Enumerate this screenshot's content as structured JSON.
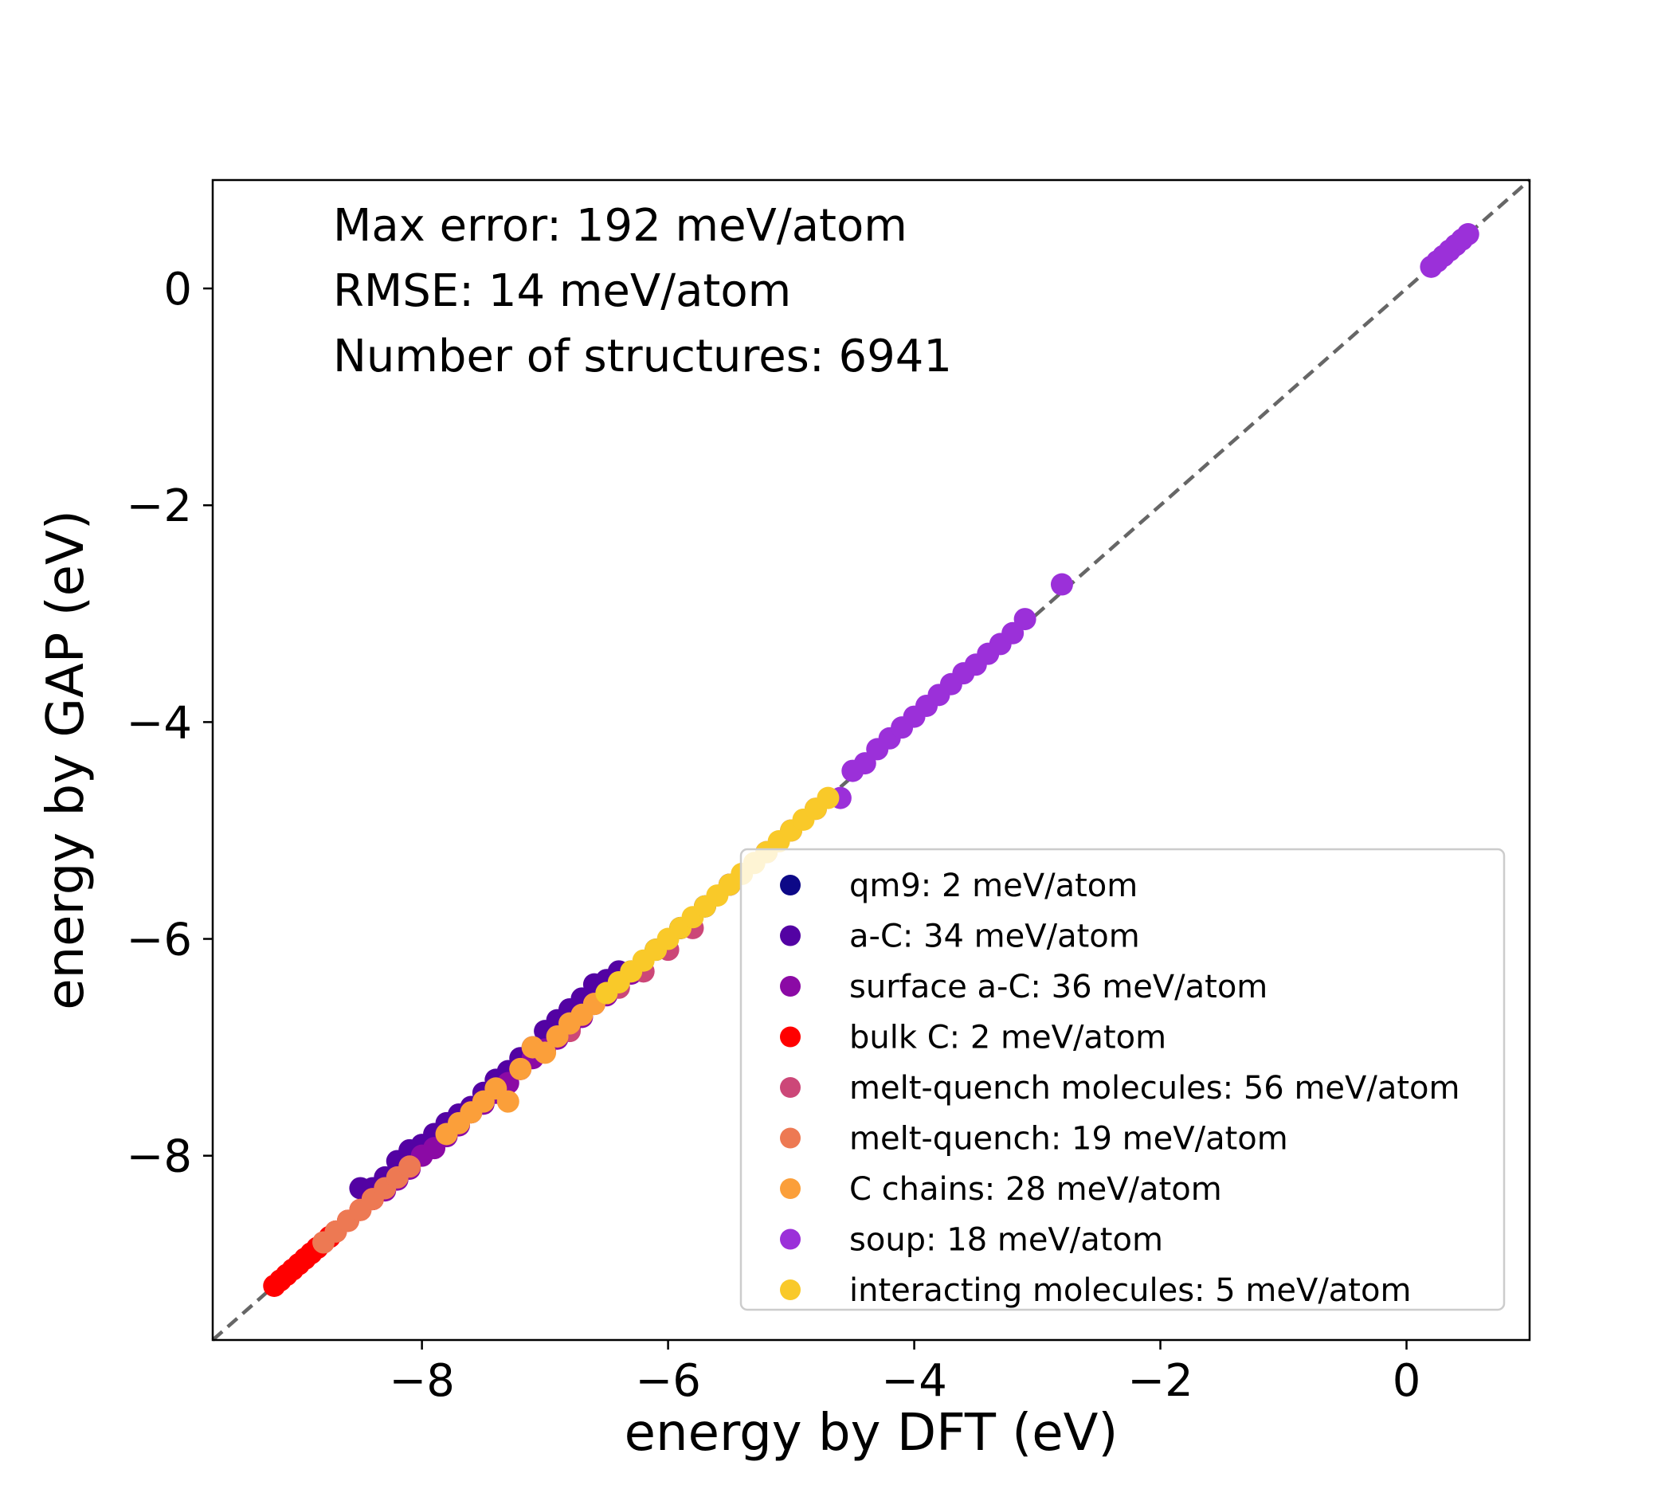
{
  "chart_data": {
    "type": "scatter",
    "title": "",
    "xlabel": "energy by DFT (eV)",
    "ylabel": "energy by GAP (eV)",
    "xlim": [
      -9.7,
      1.0
    ],
    "ylim": [
      -9.7,
      1.0
    ],
    "xticks": [
      -8,
      -6,
      -4,
      -2,
      0
    ],
    "yticks": [
      -8,
      -6,
      -4,
      -2,
      0
    ],
    "xtick_labels": [
      "−8",
      "−6",
      "−4",
      "−2",
      "0"
    ],
    "ytick_labels": [
      "−8",
      "−6",
      "−4",
      "−2",
      "0"
    ],
    "grid": false,
    "reference_line": {
      "from": [
        -9.7,
        -9.7
      ],
      "to": [
        1.0,
        1.0
      ],
      "style": "dashed",
      "color": "#666666"
    },
    "annotations": [
      "Max error: 192 meV/atom",
      "RMSE: 14 meV/atom",
      "Number of structures: 6941"
    ],
    "legend_position": "lower-right",
    "series": [
      {
        "name": "qm9: 2 meV/atom",
        "color": "#0d0887",
        "x": [
          -6.3,
          -6.1,
          -5.9,
          -5.7,
          -5.5
        ],
        "y": [
          -6.3,
          -6.1,
          -5.9,
          -5.7,
          -5.5
        ]
      },
      {
        "name": "a-C: 34 meV/atom",
        "color": "#5302a3",
        "x": [
          -8.5,
          -8.4,
          -8.3,
          -8.2,
          -8.1,
          -8.0,
          -7.9,
          -7.8,
          -7.7,
          -7.6,
          -7.5,
          -7.4,
          -7.3,
          -7.2,
          -7.1,
          -7.0,
          -6.9,
          -6.8,
          -6.7,
          -6.6,
          -6.5,
          -6.4
        ],
        "y": [
          -8.3,
          -8.3,
          -8.2,
          -8.05,
          -7.95,
          -7.9,
          -7.8,
          -7.7,
          -7.62,
          -7.55,
          -7.42,
          -7.3,
          -7.22,
          -7.1,
          -7.0,
          -6.85,
          -6.75,
          -6.65,
          -6.55,
          -6.42,
          -6.38,
          -6.3
        ]
      },
      {
        "name": "surface a-C: 36 meV/atom",
        "color": "#8b0aa5",
        "x": [
          -8.4,
          -8.3,
          -8.2,
          -8.1,
          -8.0,
          -7.9,
          -7.8,
          -7.7,
          -7.6,
          -7.5,
          -7.4,
          -7.3,
          -7.2,
          -7.1,
          -7.0,
          -6.9,
          -6.8,
          -6.7,
          -6.6,
          -6.5,
          -6.4,
          -6.3
        ],
        "y": [
          -8.4,
          -8.32,
          -8.22,
          -8.12,
          -8.0,
          -7.93,
          -7.82,
          -7.72,
          -7.6,
          -7.52,
          -7.42,
          -7.33,
          -7.2,
          -7.1,
          -7.02,
          -6.92,
          -6.82,
          -6.72,
          -6.6,
          -6.52,
          -6.4,
          -6.32
        ]
      },
      {
        "name": "bulk C: 2 meV/atom",
        "color": "#ff0000",
        "x": [
          -9.2,
          -9.15,
          -9.1,
          -9.05,
          -9.0,
          -8.95,
          -8.9,
          -8.85,
          -8.8,
          -8.75,
          -8.7,
          -8.6,
          -8.5,
          -8.4
        ],
        "y": [
          -9.2,
          -9.15,
          -9.1,
          -9.05,
          -9.0,
          -8.95,
          -8.9,
          -8.85,
          -8.8,
          -8.75,
          -8.7,
          -8.6,
          -8.5,
          -8.4
        ]
      },
      {
        "name": "melt-quench molecules: 56 meV/atom",
        "color": "#cc4778",
        "x": [
          -6.8,
          -6.6,
          -6.4,
          -6.2,
          -6.0,
          -5.8
        ],
        "y": [
          -6.85,
          -6.6,
          -6.45,
          -6.3,
          -6.1,
          -5.9
        ]
      },
      {
        "name": "melt-quench: 19 meV/atom",
        "color": "#ed7953",
        "x": [
          -8.8,
          -8.7,
          -8.6,
          -8.5,
          -8.4,
          -8.3,
          -8.2,
          -8.1
        ],
        "y": [
          -8.8,
          -8.7,
          -8.6,
          -8.5,
          -8.4,
          -8.3,
          -8.2,
          -8.1
        ]
      },
      {
        "name": "C chains: 28 meV/atom",
        "color": "#fb9f3a",
        "x": [
          -7.8,
          -7.7,
          -7.6,
          -7.5,
          -7.4,
          -7.3,
          -7.2,
          -7.1,
          -7.0,
          -6.9,
          -6.8,
          -6.7,
          -6.6,
          -6.5
        ],
        "y": [
          -7.8,
          -7.7,
          -7.6,
          -7.5,
          -7.38,
          -7.5,
          -7.2,
          -7.0,
          -7.05,
          -6.9,
          -6.78,
          -6.7,
          -6.6,
          -6.5
        ]
      },
      {
        "name": "soup: 18 meV/atom",
        "color": "#9b30d9",
        "x": [
          -5.5,
          -5.2,
          -5.0,
          -4.8,
          -4.6,
          -4.5,
          -4.4,
          -4.3,
          -4.2,
          -4.1,
          -4.0,
          -3.9,
          -3.8,
          -3.7,
          -3.6,
          -3.5,
          -3.4,
          -3.3,
          -3.2,
          -3.1,
          -2.8,
          0.2,
          0.25,
          0.3,
          0.35,
          0.4,
          0.45,
          0.5
        ],
        "y": [
          -5.5,
          -5.2,
          -5.0,
          -4.8,
          -4.7,
          -4.45,
          -4.38,
          -4.25,
          -4.15,
          -4.05,
          -3.95,
          -3.85,
          -3.75,
          -3.65,
          -3.55,
          -3.47,
          -3.37,
          -3.28,
          -3.18,
          -3.05,
          -2.73,
          0.2,
          0.25,
          0.3,
          0.35,
          0.4,
          0.45,
          0.5
        ]
      },
      {
        "name": "interacting molecules: 5 meV/atom",
        "color": "#f9c929",
        "x": [
          -6.5,
          -6.4,
          -6.3,
          -6.2,
          -6.1,
          -6.0,
          -5.9,
          -5.8,
          -5.7,
          -5.6,
          -5.5,
          -5.4,
          -5.3,
          -5.2,
          -5.1,
          -5.0,
          -4.9,
          -4.8,
          -4.7
        ],
        "y": [
          -6.5,
          -6.4,
          -6.3,
          -6.2,
          -6.1,
          -6.0,
          -5.9,
          -5.8,
          -5.7,
          -5.6,
          -5.5,
          -5.4,
          -5.3,
          -5.2,
          -5.1,
          -5.0,
          -4.9,
          -4.8,
          -4.7
        ]
      }
    ]
  }
}
